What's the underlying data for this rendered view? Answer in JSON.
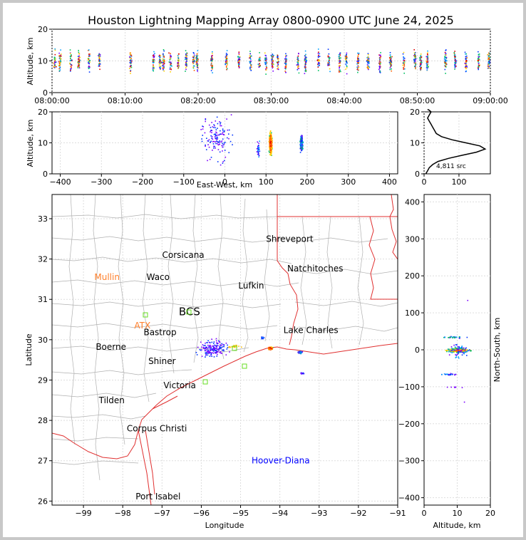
{
  "chart_data": [
    {
      "type": "scatter",
      "panel": "altitude-time",
      "title": "Houston Lightning Mapping Array 0800-0900 UTC June 24, 2025",
      "ylabel": "Altitude, km",
      "xlim": [
        "08:00:00",
        "09:00:00"
      ],
      "ylim": [
        0,
        20
      ],
      "x_ticks": [
        "08:00:00",
        "08:10:00",
        "08:20:00",
        "08:30:00",
        "08:40:00",
        "08:50:00",
        "09:00:00"
      ],
      "y_ticks": [
        "0",
        "10",
        "20"
      ],
      "clusters_minutes": [
        0.3,
        1.0,
        2.5,
        3.6,
        5.0,
        6.4,
        10.7,
        13.8,
        14.7,
        15.2,
        16.1,
        17.2,
        18.3,
        19.3,
        19.8,
        21.8,
        23.8,
        25.5,
        27.1,
        28.3,
        29.2,
        30.1,
        30.8,
        31.9,
        33.6,
        34.6,
        36.4,
        37.8,
        39.3,
        40.2,
        41.8,
        43.2,
        44.8,
        46.3,
        48.1,
        49.6,
        50.4,
        51.3,
        53.8,
        55.1,
        56.6,
        58.3,
        59.7
      ]
    },
    {
      "type": "scatter",
      "panel": "altitude-east-west",
      "xlabel": "East-West, km",
      "ylabel": "Altitude, km",
      "xlim": [
        -420,
        420
      ],
      "ylim": [
        0,
        20
      ],
      "x_ticks": [
        "−400",
        "−300",
        "−200",
        "−100",
        "0",
        "100",
        "200",
        "300",
        "400"
      ],
      "y_ticks": [
        "0",
        "10",
        "20"
      ],
      "clusters_km": [
        [
          110,
          10
        ],
        [
          185,
          10
        ],
        [
          -20,
          12
        ],
        [
          80,
          8
        ]
      ]
    },
    {
      "type": "line",
      "panel": "altitude-histogram",
      "xlim": [
        0,
        190
      ],
      "ylim": [
        0,
        20
      ],
      "x_ticks": [
        "0",
        "100"
      ],
      "y_ticks": [
        "0",
        "10",
        "20"
      ],
      "annotation": "4,811 src",
      "x": [
        5,
        10,
        15,
        25,
        40,
        70,
        110,
        150,
        175,
        160,
        120,
        80,
        50,
        35,
        30,
        25,
        20,
        15,
        10,
        15,
        20,
        15,
        10
      ],
      "y": [
        0,
        1,
        2,
        3,
        4,
        5,
        6,
        7,
        8,
        9,
        10,
        11,
        12,
        13,
        14,
        15,
        16,
        17,
        18,
        19,
        20,
        20.5,
        21
      ]
    },
    {
      "type": "map",
      "panel": "plan-view",
      "xlabel": "Longitude",
      "ylabel": "Latitude",
      "xlim": [
        -99.8,
        -91
      ],
      "ylim": [
        25.9,
        33.6
      ],
      "x_ticks": [
        "−99",
        "−98",
        "−97",
        "−96",
        "−95",
        "−94",
        "−93",
        "−92",
        "−91"
      ],
      "y_ticks": [
        "26",
        "27",
        "28",
        "29",
        "30",
        "31",
        "32",
        "33"
      ],
      "places": [
        {
          "name": "Shreveport",
          "lon": -93.75,
          "lat": 32.5,
          "color": "#000000"
        },
        {
          "name": "Corsicana",
          "lon": -96.46,
          "lat": 32.1,
          "color": "#000000"
        },
        {
          "name": "Natchitoches",
          "lon": -93.1,
          "lat": 31.76,
          "color": "#000000"
        },
        {
          "name": "Mullin",
          "lon": -98.4,
          "lat": 31.55,
          "color": "#ff7f2a"
        },
        {
          "name": "Waco",
          "lon": -97.1,
          "lat": 31.55,
          "color": "#000000"
        },
        {
          "name": "Lufkin",
          "lon": -94.73,
          "lat": 31.34,
          "color": "#000000"
        },
        {
          "name": "BCS",
          "lon": -96.3,
          "lat": 30.68,
          "color": "#000000"
        },
        {
          "name": "ATX",
          "lon": -97.5,
          "lat": 30.35,
          "color": "#ff7f2a"
        },
        {
          "name": "Bastrop",
          "lon": -97.05,
          "lat": 30.18,
          "color": "#000000"
        },
        {
          "name": "Lake Charles",
          "lon": -93.21,
          "lat": 30.24,
          "color": "#000000"
        },
        {
          "name": "Boerne",
          "lon": -98.3,
          "lat": 29.82,
          "color": "#000000"
        },
        {
          "name": "Shiner",
          "lon": -97.0,
          "lat": 29.47,
          "color": "#000000"
        },
        {
          "name": "Victoria",
          "lon": -96.55,
          "lat": 28.87,
          "color": "#000000"
        },
        {
          "name": "Tilden",
          "lon": -98.28,
          "lat": 28.5,
          "color": "#000000"
        },
        {
          "name": "Corpus Christi",
          "lon": -97.13,
          "lat": 27.8,
          "color": "#000000"
        },
        {
          "name": "Hoover-Diana",
          "lon": -93.98,
          "lat": 27.0,
          "color": "#0000ff"
        },
        {
          "name": "Port Isabel",
          "lon": -97.1,
          "lat": 26.11,
          "color": "#000000"
        }
      ],
      "clusters_lonlat": [
        [
          -94.25,
          29.8
        ],
        [
          -93.5,
          29.7
        ],
        [
          -95.8,
          29.8
        ],
        [
          -94.45,
          30.05
        ],
        [
          -93.45,
          29.18
        ]
      ]
    },
    {
      "type": "scatter",
      "panel": "north-south-altitude",
      "xlabel": "Altitude, km",
      "ylabel": "North-South, km",
      "xlim": [
        0,
        20
      ],
      "ylim": [
        -420,
        420
      ],
      "x_ticks": [
        "0",
        "10",
        "20"
      ],
      "y_ticks": [
        "−400",
        "−300",
        "−200",
        "−100",
        "0",
        "100",
        "200",
        "300",
        "400"
      ]
    }
  ]
}
